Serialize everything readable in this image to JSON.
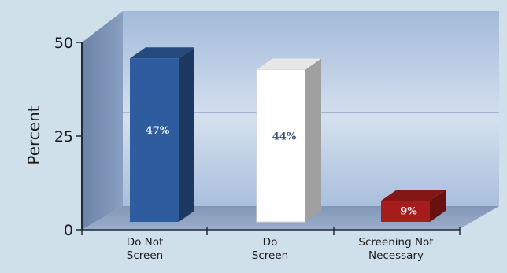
{
  "chart_data": {
    "type": "bar",
    "ylabel": "Percent",
    "xlabel": "",
    "title": "",
    "ylim": [
      0,
      50
    ],
    "yticks": [
      "0",
      "25",
      "50"
    ],
    "grid": true,
    "categories": [
      [
        "Do Not",
        "Screen"
      ],
      [
        "Do",
        "Screen"
      ],
      [
        "Screening Not",
        "Necessary"
      ]
    ],
    "values": [
      47,
      44,
      9
    ],
    "data_labels": [
      "47%",
      "44%",
      "9%"
    ],
    "bar_colors": [
      "#2e5c9e",
      "#ffffff",
      "#a61c1c"
    ],
    "label_colors": [
      "#ffffff",
      "#3d4f7a",
      "#ffffff"
    ],
    "style": "3d"
  }
}
